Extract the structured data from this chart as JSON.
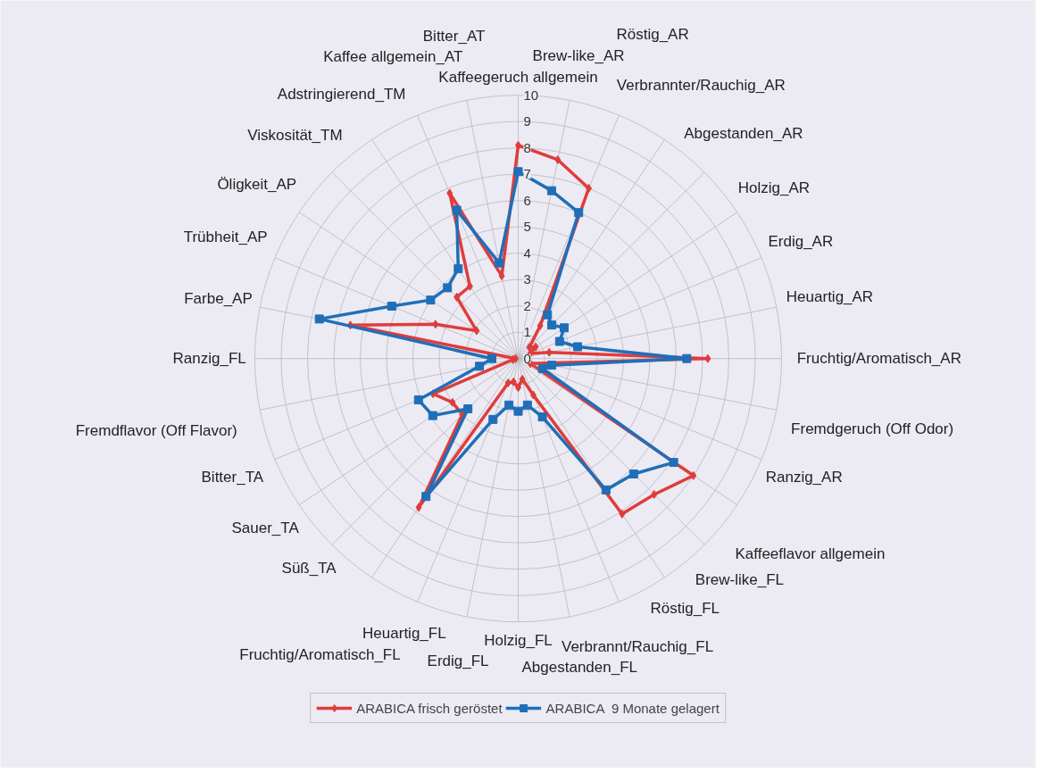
{
  "chart_data": {
    "type": "radar",
    "categories": [
      "Kaffeegeruch allgemein",
      "Brew-like_AR",
      "Röstig_AR",
      "Verbrannter/Rauchig_AR",
      "Abgestanden_AR",
      "Holzig_AR",
      "Erdig_AR",
      "Heuartig_AR",
      "Fruchtig/Aromatisch_AR",
      "Fremdgeruch (Off Odor)",
      "Ranzig_AR",
      "Kaffeeflavor allgemein",
      "Brew-like_FL",
      "Röstig_FL",
      "Verbrannt/Rauchig_FL",
      "Abgestanden_FL",
      "Holzig_FL",
      "Erdig_FL",
      "Heuartig_FL",
      "Fruchtig/Aromatisch_FL",
      "Süß_TA",
      "Sauer_TA",
      "Bitter_TA",
      "Fremdflavor (Off Flavor)",
      "Ranzig_FL",
      "Farbe_AP",
      "Trübheit_AP",
      "Öligkeit_AP",
      "Viskosität_TM",
      "Adstringierend_TM",
      "Kaffee allgemein_AT",
      "Bitter_AT"
    ],
    "series": [
      {
        "name": "ARABICA frisch geröstet",
        "color": "#e03c3c",
        "marker": "diamond",
        "values": [
          8.1,
          7.7,
          7.0,
          1.5,
          0.6,
          0.8,
          0.5,
          1.2,
          7.2,
          null,
          0.5,
          8.0,
          7.3,
          7.1,
          1.5,
          0.8,
          1.1,
          0.9,
          1.0,
          6.8,
          3.0,
          3.0,
          3.5,
          0.2,
          0.1,
          6.5,
          3.4,
          1.9,
          3.3,
          3.3,
          6.8,
          3.2
        ]
      },
      {
        "name": "ARABICA  9 Monate gelagert",
        "color": "#1f6fb8",
        "marker": "square",
        "values": [
          7.1,
          6.5,
          6.0,
          2.0,
          1.8,
          2.1,
          1.7,
          2.3,
          6.4,
          1.3,
          1.0,
          7.1,
          6.2,
          6.0,
          2.4,
          1.8,
          2.0,
          1.8,
          2.5,
          6.3,
          2.7,
          3.9,
          4.1,
          1.5,
          1.0,
          7.7,
          5.2,
          4.0,
          3.8,
          4.1,
          6.1,
          3.7
        ]
      }
    ],
    "ylim": [
      0,
      10
    ],
    "yticks": [
      0,
      1,
      2,
      3,
      4,
      5,
      6,
      7,
      8,
      9,
      10
    ],
    "grid": true,
    "legend": "bottom"
  }
}
